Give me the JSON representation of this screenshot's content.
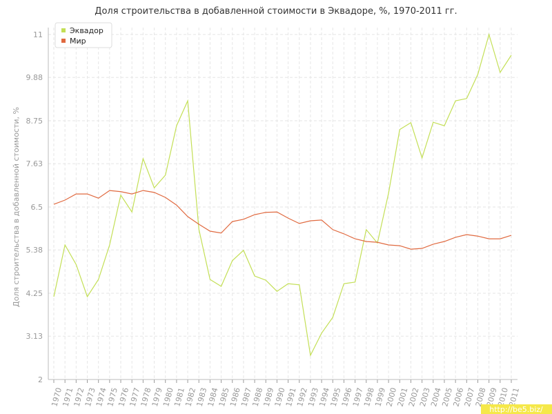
{
  "chart_data": {
    "type": "line",
    "title": "Доля строительства в добавленной стоимости в Эквадоре, %, 1970-2011 гг.",
    "y_label": "Доля строительства в добавленной стоимости, %",
    "categories": [
      "1970",
      "1971",
      "1972",
      "1973",
      "1974",
      "1975",
      "1976",
      "1977",
      "1978",
      "1979",
      "1980",
      "1981",
      "1982",
      "1983",
      "1984",
      "1985",
      "1986",
      "1987",
      "1988",
      "1989",
      "1990",
      "1991",
      "1992",
      "1993",
      "1994",
      "1995",
      "1996",
      "1997",
      "1998",
      "1999",
      "2000",
      "2001",
      "2002",
      "2003",
      "2004",
      "2005",
      "2006",
      "2007",
      "2008",
      "2009",
      "2010",
      "2011"
    ],
    "series": [
      {
        "name": "Эквадор",
        "color": "#c3df55",
        "values": [
          4.16,
          5.51,
          5.0,
          4.16,
          4.61,
          5.51,
          6.81,
          6.37,
          7.76,
          7.0,
          7.33,
          8.62,
          9.27,
          5.92,
          4.61,
          4.43,
          5.1,
          5.37,
          4.7,
          4.59,
          4.3,
          4.5,
          4.47,
          2.63,
          3.21,
          3.62,
          4.5,
          4.54,
          5.91,
          5.56,
          6.86,
          8.52,
          8.7,
          7.78,
          8.71,
          8.62,
          9.27,
          9.33,
          9.96,
          11.0,
          10.01,
          10.46
        ]
      },
      {
        "name": "Мир",
        "color": "#e0693f",
        "values": [
          6.57,
          6.68,
          6.84,
          6.84,
          6.73,
          6.93,
          6.9,
          6.84,
          6.93,
          6.88,
          6.75,
          6.55,
          6.25,
          6.05,
          5.87,
          5.82,
          6.12,
          6.18,
          6.3,
          6.36,
          6.37,
          6.21,
          6.07,
          6.14,
          6.16,
          5.91,
          5.8,
          5.67,
          5.6,
          5.58,
          5.51,
          5.49,
          5.4,
          5.42,
          5.53,
          5.6,
          5.71,
          5.78,
          5.74,
          5.67,
          5.67,
          5.76
        ]
      }
    ],
    "ylim": [
      2,
      11
    ],
    "yticks": [
      2,
      3.13,
      4.25,
      5.38,
      6.5,
      7.63,
      8.75,
      9.88,
      11
    ],
    "grid": true,
    "legend": "top-left",
    "watermark": "http://be5.biz/"
  }
}
